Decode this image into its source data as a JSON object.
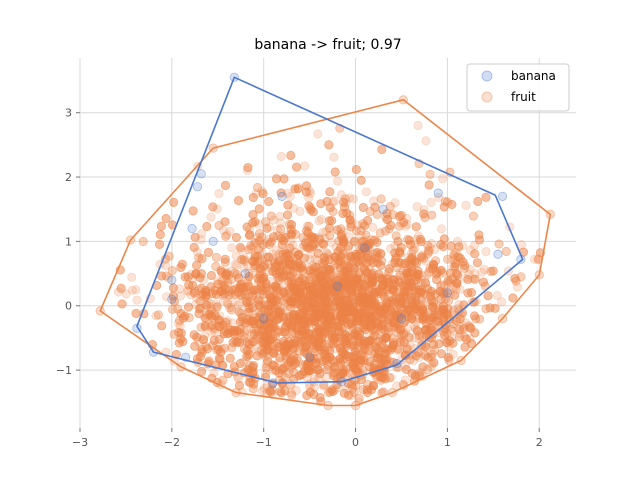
{
  "chart_data": {
    "type": "scatter",
    "title": "banana -> fruit; 0.97",
    "xlabel": "",
    "ylabel": "",
    "xlim": [
      -3.0,
      2.4
    ],
    "ylim": [
      -1.9,
      3.85
    ],
    "xticks": [
      -3,
      -2,
      -1,
      0,
      1,
      2
    ],
    "yticks": [
      -1,
      0,
      1,
      2,
      3
    ],
    "grid": true,
    "legend_position": "top-right",
    "series": [
      {
        "name": "banana",
        "color": "#4a77cf",
        "points": [
          [
            -1.32,
            3.55
          ],
          [
            -1.72,
            1.85
          ],
          [
            -1.68,
            2.05
          ],
          [
            -1.78,
            1.2
          ],
          [
            -2.38,
            -0.35
          ],
          [
            -2.2,
            -0.72
          ],
          [
            -1.85,
            -0.8
          ],
          [
            -2.0,
            0.1
          ],
          [
            -2.0,
            0.4
          ],
          [
            -1.55,
            1.0
          ],
          [
            -1.2,
            0.5
          ],
          [
            -0.8,
            1.7
          ],
          [
            0.1,
            0.9
          ],
          [
            0.3,
            1.5
          ],
          [
            0.9,
            1.75
          ],
          [
            1.6,
            1.7
          ],
          [
            1.8,
            0.72
          ],
          [
            1.55,
            0.8
          ],
          [
            1.0,
            0.2
          ],
          [
            0.5,
            -0.2
          ],
          [
            -0.5,
            -0.8
          ],
          [
            -0.2,
            0.3
          ],
          [
            -1.0,
            -0.2
          ],
          [
            0.45,
            -0.9
          ],
          [
            -0.9,
            -1.2
          ],
          [
            -0.15,
            -1.18
          ]
        ],
        "hull": [
          [
            -1.32,
            3.55
          ],
          [
            1.52,
            1.72
          ],
          [
            1.82,
            0.72
          ],
          [
            0.45,
            -0.92
          ],
          [
            -0.15,
            -1.18
          ],
          [
            -0.85,
            -1.2
          ],
          [
            -2.2,
            -0.72
          ],
          [
            -2.38,
            -0.32
          ]
        ]
      },
      {
        "name": "fruit",
        "color": "#ee8548",
        "center": [
          -0.25,
          -0.1
        ],
        "spread": [
          0.78,
          0.68
        ],
        "count": 5200,
        "hull": [
          [
            0.52,
            3.2
          ],
          [
            2.12,
            1.42
          ],
          [
            2.0,
            0.48
          ],
          [
            1.6,
            -0.2
          ],
          [
            1.15,
            -0.85
          ],
          [
            0.4,
            -1.35
          ],
          [
            0.0,
            -1.55
          ],
          [
            -0.3,
            -1.55
          ],
          [
            -1.3,
            -1.35
          ],
          [
            -1.9,
            -0.95
          ],
          [
            -2.78,
            -0.08
          ],
          [
            -2.45,
            1.02
          ],
          [
            -1.55,
            2.45
          ]
        ]
      }
    ]
  }
}
